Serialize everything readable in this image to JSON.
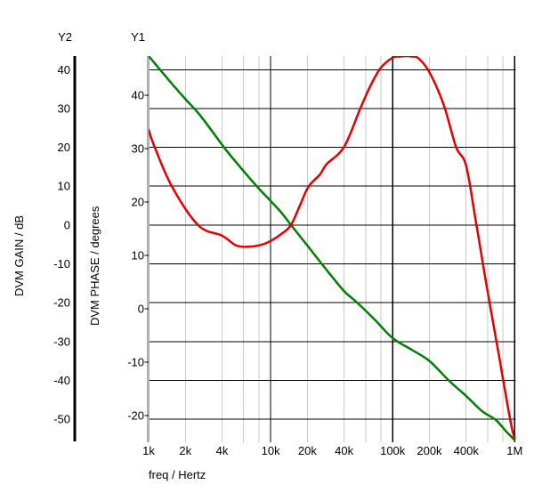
{
  "window": {
    "background": "#ffffff"
  },
  "chart_data": {
    "type": "line",
    "grid": "on",
    "legend": "none",
    "x_axis": {
      "label": "freq / Hertz",
      "scale": "log",
      "range_hz": [
        1000,
        1000000
      ],
      "tick_labels": [
        {
          "hz": 1000,
          "label": "1k"
        },
        {
          "hz": 2000,
          "label": "2k"
        },
        {
          "hz": 4000,
          "label": "4k"
        },
        {
          "hz": 10000,
          "label": "10k"
        },
        {
          "hz": 20000,
          "label": "20k"
        },
        {
          "hz": 40000,
          "label": "40k"
        },
        {
          "hz": 100000,
          "label": "100k"
        },
        {
          "hz": 200000,
          "label": "200k"
        },
        {
          "hz": 400000,
          "label": "400k"
        },
        {
          "hz": 1000000,
          "label": "1M"
        }
      ],
      "minor_gridlines_hz": [
        2000,
        4000,
        6000,
        8000,
        20000,
        40000,
        60000,
        80000,
        200000,
        400000,
        600000,
        800000
      ],
      "major_gridlines_hz": [
        10000,
        100000,
        1000000
      ],
      "minor_gridline_color": "#c9c9c9",
      "major_gridline_color": "#000000",
      "axis_line_color": "#b0b0b0"
    },
    "y_axes": [
      {
        "id": "Y2",
        "header": "Y2",
        "label": "DVM GAIN / dB",
        "range": [
          -55.7,
          43.5
        ],
        "gridlines": true,
        "gridline_color": "#000000",
        "axis_color": "#000000",
        "ticks": [
          {
            "value": 40,
            "label": "40"
          },
          {
            "value": 30,
            "label": "30"
          },
          {
            "value": 20,
            "label": "20"
          },
          {
            "value": 10,
            "label": "10"
          },
          {
            "value": 0,
            "label": "0"
          },
          {
            "value": -10,
            "label": "-10"
          },
          {
            "value": -20,
            "label": "-20"
          },
          {
            "value": -30,
            "label": "-30"
          },
          {
            "value": -40,
            "label": "-40"
          },
          {
            "value": -50,
            "label": "-50"
          }
        ]
      },
      {
        "id": "Y1",
        "header": "Y1",
        "label": "DVM PHASE / degrees",
        "range": [
          -24.8,
          47.3
        ],
        "gridlines": false,
        "axis_color": "#b0b0b0",
        "ticks": [
          {
            "value": 40,
            "label": "40"
          },
          {
            "value": 30,
            "label": "30"
          },
          {
            "value": 20,
            "label": "20"
          },
          {
            "value": 10,
            "label": "10"
          },
          {
            "value": 0,
            "label": "0"
          },
          {
            "value": -10,
            "label": "-10"
          },
          {
            "value": -20,
            "label": "-20"
          }
        ]
      }
    ],
    "series": [
      {
        "name": "DVM GAIN",
        "axis": "Y2",
        "unit": "dB",
        "color": "#008000",
        "points": [
          [
            1000,
            43.5
          ],
          [
            1420,
            37.8
          ],
          [
            1990,
            32.5
          ],
          [
            2650,
            28.2
          ],
          [
            4170,
            19.9
          ],
          [
            5630,
            14.9
          ],
          [
            7890,
            9.6
          ],
          [
            10000,
            6.2
          ],
          [
            12400,
            3.0
          ],
          [
            14700,
            0.0
          ],
          [
            20000,
            -5.3
          ],
          [
            29300,
            -11.9
          ],
          [
            40000,
            -17.0
          ],
          [
            50000,
            -19.7
          ],
          [
            70000,
            -24.1
          ],
          [
            100000,
            -29.1
          ],
          [
            143000,
            -32.1
          ],
          [
            200000,
            -35.0
          ],
          [
            290000,
            -40.1
          ],
          [
            400000,
            -44.0
          ],
          [
            540000,
            -47.9
          ],
          [
            700000,
            -50.2
          ],
          [
            850000,
            -53.1
          ],
          [
            1000000,
            -55.4
          ]
        ]
      },
      {
        "name": "DVM PHASE",
        "axis": "Y1",
        "unit": "degrees",
        "color": "#e30000",
        "points": [
          [
            1000,
            33.5
          ],
          [
            1110,
            30.5
          ],
          [
            1550,
            22.9
          ],
          [
            2560,
            15.6
          ],
          [
            4000,
            13.7
          ],
          [
            5180,
            11.9
          ],
          [
            6440,
            11.6
          ],
          [
            8150,
            11.9
          ],
          [
            10000,
            12.7
          ],
          [
            12400,
            14.1
          ],
          [
            14700,
            15.7
          ],
          [
            17400,
            19.4
          ],
          [
            20500,
            22.9
          ],
          [
            25500,
            25.2
          ],
          [
            28800,
            27.1
          ],
          [
            40000,
            30.3
          ],
          [
            54300,
            37.5
          ],
          [
            66300,
            41.9
          ],
          [
            80000,
            45.1
          ],
          [
            100000,
            47.0
          ],
          [
            115000,
            47.2
          ],
          [
            130000,
            47.3
          ],
          [
            145000,
            47.2
          ],
          [
            160000,
            47.0
          ],
          [
            190000,
            45.1
          ],
          [
            225000,
            41.9
          ],
          [
            268000,
            37.5
          ],
          [
            332000,
            30.2
          ],
          [
            400000,
            26.8
          ],
          [
            482000,
            16.2
          ],
          [
            570000,
            6.2
          ],
          [
            650000,
            -1.3
          ],
          [
            745000,
            -8.9
          ],
          [
            850000,
            -16.4
          ],
          [
            940000,
            -21.9
          ],
          [
            1000000,
            -24.3
          ]
        ]
      }
    ]
  }
}
